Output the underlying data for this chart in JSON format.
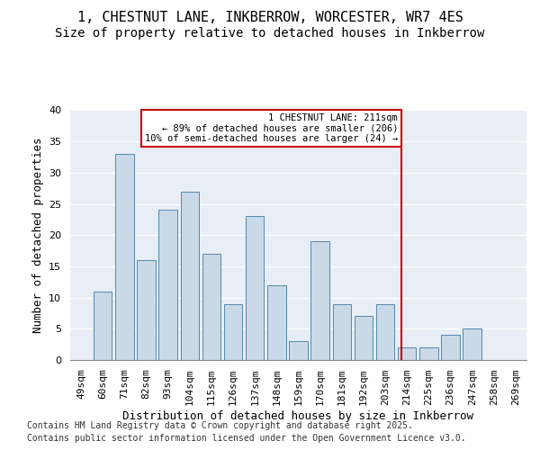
{
  "title_line1": "1, CHESTNUT LANE, INKBERROW, WORCESTER, WR7 4ES",
  "title_line2": "Size of property relative to detached houses in Inkberrow",
  "xlabel": "Distribution of detached houses by size in Inkberrow",
  "ylabel": "Number of detached properties",
  "categories": [
    "49sqm",
    "60sqm",
    "71sqm",
    "82sqm",
    "93sqm",
    "104sqm",
    "115sqm",
    "126sqm",
    "137sqm",
    "148sqm",
    "159sqm",
    "170sqm",
    "181sqm",
    "192sqm",
    "203sqm",
    "214sqm",
    "225sqm",
    "236sqm",
    "247sqm",
    "258sqm",
    "269sqm"
  ],
  "values": [
    0,
    11,
    33,
    16,
    24,
    27,
    17,
    9,
    23,
    12,
    3,
    19,
    9,
    7,
    9,
    2,
    2,
    4,
    5,
    0,
    0
  ],
  "bar_color": "#c9d9e8",
  "bar_edge_color": "#5588aa",
  "vline_color": "#cc0000",
  "annotation_text": "1 CHESTNUT LANE: 211sqm\n← 89% of detached houses are smaller (206)\n10% of semi-detached houses are larger (24) →",
  "ylim": [
    0,
    40
  ],
  "yticks": [
    0,
    5,
    10,
    15,
    20,
    25,
    30,
    35,
    40
  ],
  "bg_color": "#e8eef5",
  "title_fontsize": 11,
  "subtitle_fontsize": 10,
  "axis_label_fontsize": 9,
  "tick_fontsize": 8,
  "footer_fontsize": 7,
  "footer_line1": "Contains HM Land Registry data © Crown copyright and database right 2025.",
  "footer_line2": "Contains public sector information licensed under the Open Government Licence v3.0."
}
